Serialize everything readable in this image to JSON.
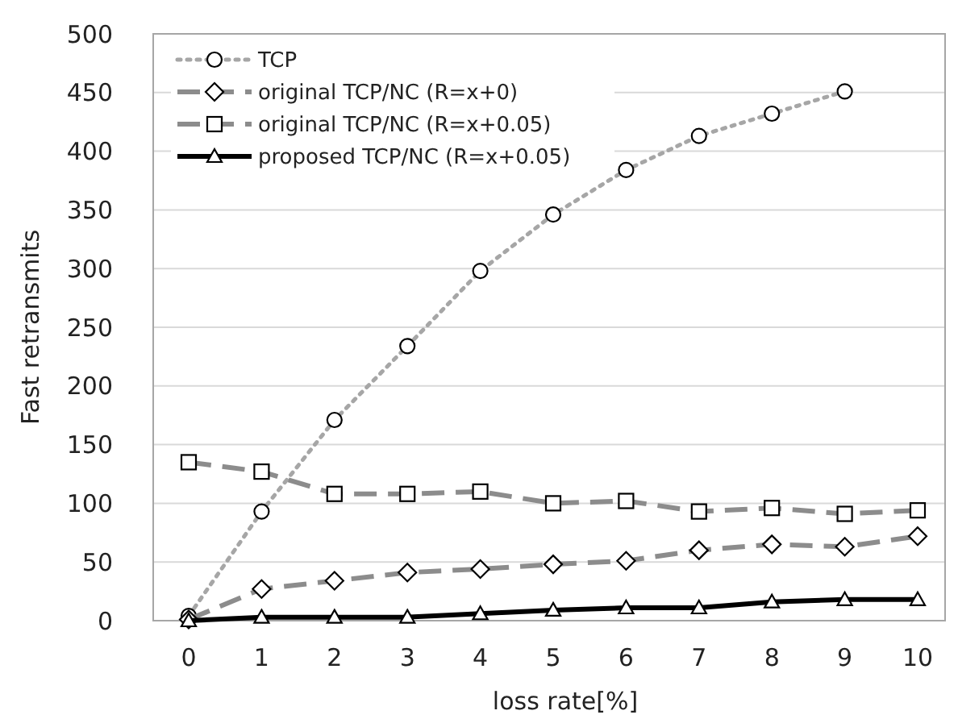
{
  "chart_data": {
    "type": "line",
    "xlabel": "loss rate[%]",
    "ylabel": "Fast retransmits",
    "categories": [
      "0",
      "1",
      "2",
      "3",
      "4",
      "5",
      "6",
      "7",
      "8",
      "9",
      "10"
    ],
    "ylim": [
      0,
      500
    ],
    "yticks": [
      0,
      50,
      100,
      150,
      200,
      250,
      300,
      350,
      400,
      450,
      500
    ],
    "grid": "y",
    "legend": "top left",
    "series": [
      {
        "name": "TCP",
        "color": "#a6a6a6",
        "marker": "circle",
        "line_style": "dotted",
        "values": [
          4,
          93,
          171,
          234,
          298,
          346,
          384,
          413,
          432,
          451,
          null
        ]
      },
      {
        "name": "original TCP/NC (R=x+0)",
        "color": "#8c8c8c",
        "marker": "diamond",
        "line_style": "dashed",
        "values": [
          1,
          27,
          34,
          41,
          44,
          48,
          51,
          60,
          65,
          63,
          72
        ]
      },
      {
        "name": "original TCP/NC (R=x+0.05)",
        "color": "#8c8c8c",
        "marker": "square",
        "line_style": "dashed",
        "values": [
          135,
          127,
          108,
          108,
          110,
          100,
          102,
          93,
          96,
          91,
          94
        ]
      },
      {
        "name": "proposed TCP/NC (R=x+0.05)",
        "color": "#000000",
        "marker": "triangle",
        "line_style": "solid",
        "values": [
          0,
          3,
          3,
          3,
          6,
          9,
          11,
          11,
          16,
          18,
          18
        ]
      }
    ]
  }
}
